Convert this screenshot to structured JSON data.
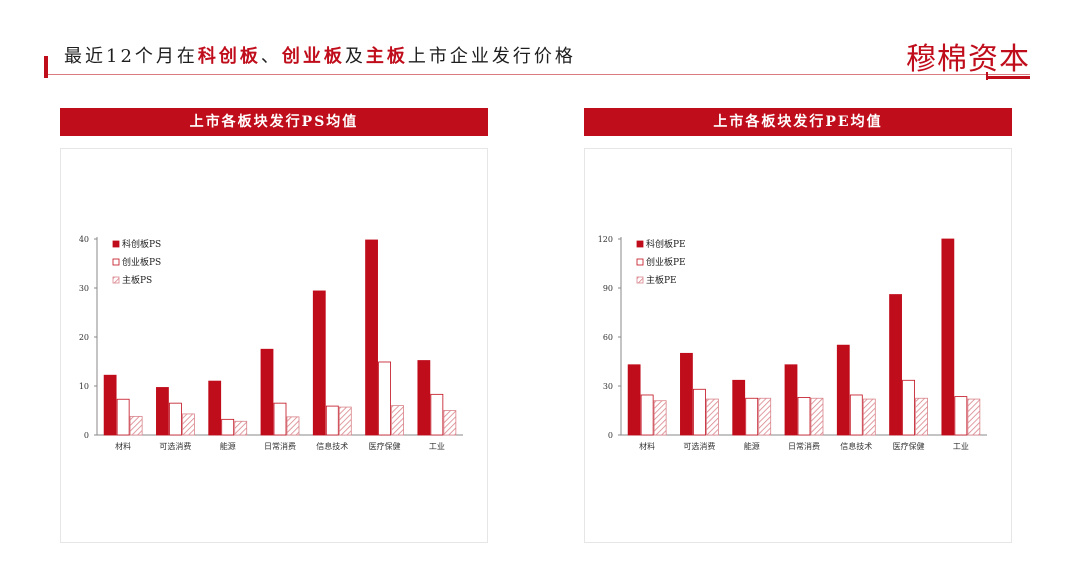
{
  "header": {
    "title_parts": [
      {
        "text": "最近12个月在",
        "hl": false
      },
      {
        "text": "科创板",
        "hl": true
      },
      {
        "text": "、",
        "hl": false
      },
      {
        "text": "创业板",
        "hl": true
      },
      {
        "text": "及",
        "hl": false
      },
      {
        "text": "主板",
        "hl": true
      },
      {
        "text": "上市企业发行价格",
        "hl": false
      }
    ],
    "brand": "穆棉资本"
  },
  "colors": {
    "accent": "#c00d1b",
    "kechuang": "#c00d1b",
    "chuangye": "#ffffff",
    "zhuban_hatch": "#d9838a"
  },
  "chart_data": [
    {
      "type": "bar",
      "panel_title": "上市各板块发行PS均值",
      "title": "",
      "categories": [
        "材料",
        "可选消费",
        "能源",
        "日常消费",
        "信息技术",
        "医疗保健",
        "工业"
      ],
      "series": [
        {
          "name": "科创板PS",
          "values": [
            12.2,
            9.7,
            11.0,
            17.5,
            29.4,
            39.8,
            15.2
          ]
        },
        {
          "name": "创业板PS",
          "values": [
            7.3,
            6.5,
            3.2,
            6.5,
            5.9,
            14.9,
            8.3
          ]
        },
        {
          "name": "主板PS",
          "values": [
            3.8,
            4.3,
            2.8,
            3.7,
            5.7,
            6.0,
            5.0
          ]
        }
      ],
      "ylim": [
        0,
        40
      ],
      "yticks": [
        "0",
        "10",
        "20",
        "30",
        "40"
      ],
      "legend": "top-left",
      "grid": false
    },
    {
      "type": "bar",
      "panel_title": "上市各板块发行PE均值",
      "title": "",
      "categories": [
        "材料",
        "可选消费",
        "能源",
        "日常消费",
        "信息技术",
        "医疗保健",
        "工业"
      ],
      "series": [
        {
          "name": "科创板PE",
          "values": [
            43,
            50,
            33.5,
            43,
            55,
            86,
            120
          ]
        },
        {
          "name": "创业板PE",
          "values": [
            24.5,
            28,
            22.5,
            23,
            24.5,
            33.5,
            23.5
          ]
        },
        {
          "name": "主板PE",
          "values": [
            21,
            22,
            22.5,
            22.5,
            22,
            22.5,
            22
          ]
        }
      ],
      "ylim": [
        0,
        120
      ],
      "yticks": [
        "0",
        "30",
        "60",
        "90",
        "120"
      ],
      "legend": "top-left",
      "grid": false
    }
  ]
}
